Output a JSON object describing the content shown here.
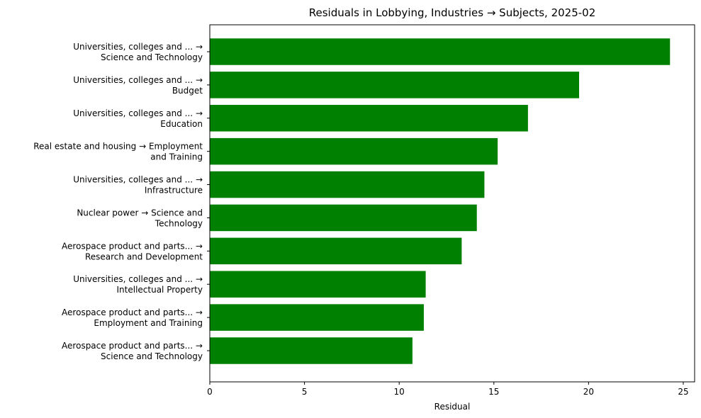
{
  "chart_data": {
    "type": "bar",
    "orientation": "horizontal",
    "title": "Residuals in Lobbying, Industries → Subjects, 2025-02",
    "xlabel": "Residual",
    "ylabel": "",
    "xlim": [
      0,
      25.6
    ],
    "xticks": [
      0,
      5,
      10,
      15,
      20,
      25
    ],
    "grid": false,
    "bar_color": "#008000",
    "categories": [
      [
        "Universities, colleges and ... →",
        "Science and Technology"
      ],
      [
        "Universities, colleges and ... →",
        "Budget"
      ],
      [
        "Universities, colleges and ... →",
        "Education"
      ],
      [
        "Real estate and housing → Employment",
        "and Training"
      ],
      [
        "Universities, colleges and ... →",
        "Infrastructure"
      ],
      [
        "Nuclear power → Science and",
        "Technology"
      ],
      [
        "Aerospace product and parts... →",
        "Research and Development"
      ],
      [
        "Universities, colleges and ... →",
        "Intellectual Property"
      ],
      [
        "Aerospace product and parts... →",
        "Employment and Training"
      ],
      [
        "Aerospace product and parts... →",
        "Science and Technology"
      ]
    ],
    "values": [
      24.3,
      19.5,
      16.8,
      15.2,
      14.5,
      14.1,
      13.3,
      11.4,
      11.3,
      10.7
    ]
  }
}
